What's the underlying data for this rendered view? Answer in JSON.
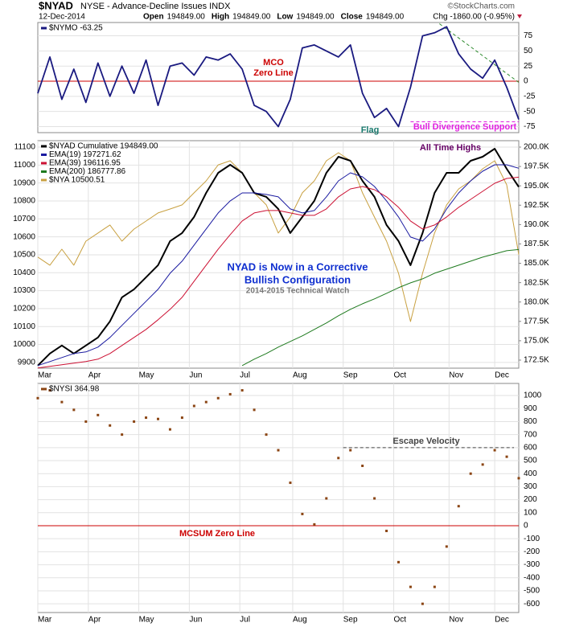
{
  "header": {
    "symbol": "$NYAD",
    "description": "NYSE - Advance-Decline Issues INDX",
    "date": "12-Dec-2014",
    "quote": [
      {
        "label": "Open",
        "value": "194849.00"
      },
      {
        "label": "High",
        "value": "194849.00"
      },
      {
        "label": "Low",
        "value": "194849.00"
      },
      {
        "label": "Close",
        "value": "194849.00"
      }
    ],
    "change": "Chg -1860.00 (-0.95%)",
    "source": "©StockCharts.com"
  },
  "chart_data": [
    {
      "type": "line",
      "y_axis_side": "right",
      "grid": true,
      "x": [
        0,
        5,
        10,
        15,
        20,
        25,
        30,
        35,
        40,
        45,
        50,
        55,
        60,
        65,
        70,
        75,
        80,
        85,
        90,
        95,
        100,
        105,
        110,
        115,
        120,
        125,
        130,
        135,
        140,
        145,
        150,
        155,
        160,
        165,
        170,
        175,
        180,
        185,
        190,
        195,
        200
      ],
      "xlim": [
        0,
        200
      ],
      "ylim": [
        -85,
        97
      ],
      "yticks": [
        -75,
        -50,
        -25,
        0,
        25,
        50,
        75
      ],
      "series": [
        {
          "name": "$NYMO -63.25",
          "color": "#1a1a80",
          "values": [
            -20,
            40,
            -30,
            20,
            -35,
            30,
            -25,
            25,
            -20,
            35,
            -40,
            25,
            30,
            10,
            40,
            35,
            45,
            20,
            -40,
            -50,
            -75,
            -30,
            55,
            60,
            50,
            40,
            60,
            -20,
            -60,
            -45,
            -75,
            -10,
            75,
            80,
            90,
            45,
            20,
            5,
            35,
            -10,
            -63.25
          ]
        }
      ],
      "hlines": [
        {
          "value": 0,
          "color": "#cc0000"
        }
      ],
      "trendlines": [
        {
          "x": [
            167,
            200
          ],
          "y": [
            95,
            -2
          ],
          "color": "#2e8b2e"
        },
        {
          "x": [
            155,
            200
          ],
          "y": [
            -67,
            -67
          ],
          "color": "#e020e0"
        }
      ],
      "annotations": [
        {
          "lines": [
            "MCO",
            "Zero Line"
          ],
          "color": "#cc0000"
        },
        {
          "lines": [
            "Flag"
          ],
          "color": "#1a7a6e"
        },
        {
          "lines": [
            "Bull Divergence Support"
          ],
          "color": "#e020e0"
        }
      ]
    },
    {
      "type": "line",
      "grid": true,
      "x": [
        0,
        5,
        10,
        15,
        20,
        25,
        30,
        35,
        40,
        45,
        50,
        55,
        60,
        65,
        70,
        75,
        80,
        85,
        90,
        95,
        100,
        105,
        110,
        115,
        120,
        125,
        130,
        135,
        140,
        145,
        150,
        155,
        160,
        165,
        170,
        175,
        180,
        185,
        190,
        195,
        200
      ],
      "xlim": [
        0,
        200
      ],
      "xticks": [
        {
          "value": 0,
          "label": "Mar"
        },
        {
          "value": 21,
          "label": "Apr"
        },
        {
          "value": 42,
          "label": "May"
        },
        {
          "value": 63,
          "label": "Jun"
        },
        {
          "value": 84,
          "label": "Jul"
        },
        {
          "value": 106,
          "label": "Aug"
        },
        {
          "value": 127,
          "label": "Sep"
        },
        {
          "value": 148,
          "label": "Oct"
        },
        {
          "value": 171,
          "label": "Nov"
        },
        {
          "value": 190,
          "label": "Dec"
        }
      ],
      "ylim": [
        9868,
        11136
      ],
      "yticks": [
        9900,
        10000,
        10100,
        10200,
        10300,
        10400,
        10500,
        10600,
        10700,
        10800,
        10900,
        11000,
        11100
      ],
      "y2lim": [
        171460,
        200830
      ],
      "y2ticks": [
        {
          "value": 172500,
          "label": "172.5K"
        },
        {
          "value": 175000,
          "label": "175.0K"
        },
        {
          "value": 177500,
          "label": "177.5K"
        },
        {
          "value": 180000,
          "label": "180.0K"
        },
        {
          "value": 182500,
          "label": "182.5K"
        },
        {
          "value": 185000,
          "label": "185.0K"
        },
        {
          "value": 187500,
          "label": "187.5K"
        },
        {
          "value": 190000,
          "label": "190.0K"
        },
        {
          "value": 192500,
          "label": "192.5K"
        },
        {
          "value": 195000,
          "label": "195.0K"
        },
        {
          "value": 197500,
          "label": "197.5K"
        },
        {
          "value": 200000,
          "label": "200.0K"
        }
      ],
      "series": [
        {
          "name": "$NYAD Cumulative 194849.00",
          "color": "#000000",
          "axis": "y2",
          "values": [
            171794,
            173349,
            174386,
            173349,
            174386,
            175423,
            177497,
            180608,
            181645,
            183201,
            184756,
            187867,
            188904,
            190978,
            194089,
            196682,
            197719,
            196682,
            194089,
            193571,
            192015,
            188904,
            190978,
            193052,
            196682,
            198756,
            198237,
            195645,
            193571,
            189941,
            187867,
            184756,
            188904,
            194089,
            196682,
            196682,
            198237,
            198756,
            199793,
            197200,
            194849
          ]
        },
        {
          "name": "EMA(19) 197271.62",
          "color": "#1a1aa0",
          "axis": "y2",
          "values": [
            171794,
            172312,
            172831,
            173349,
            173556,
            174179,
            175423,
            176979,
            178534,
            180090,
            181645,
            183719,
            185275,
            187349,
            189423,
            191497,
            193052,
            194089,
            194089,
            193882,
            193571,
            192015,
            191497,
            191808,
            193571,
            195645,
            196682,
            196163,
            194919,
            193052,
            190978,
            188386,
            187867,
            189423,
            192015,
            194089,
            195645,
            196889,
            197719,
            197719,
            197271.62
          ]
        },
        {
          "name": "EMA(39) 196116.95",
          "color": "#cc1133",
          "axis": "y2",
          "values": [
            171482,
            171690,
            171897,
            172105,
            172312,
            172623,
            173349,
            174386,
            175423,
            176460,
            177704,
            179053,
            180608,
            182682,
            184756,
            186830,
            188697,
            190460,
            191497,
            191808,
            191808,
            191497,
            191185,
            191185,
            192015,
            193571,
            194608,
            194919,
            194504,
            193571,
            192222,
            190460,
            189423,
            189941,
            190978,
            192222,
            193259,
            194296,
            195333,
            195956,
            196116.95
          ]
        },
        {
          "name": "EMA(200) 186777.86",
          "color": "#1e7a1e",
          "axis": "y2",
          "values": [
            null,
            null,
            null,
            null,
            null,
            null,
            null,
            null,
            null,
            null,
            null,
            null,
            null,
            null,
            null,
            null,
            null,
            171794,
            172623,
            173349,
            174179,
            174905,
            175630,
            176460,
            177290,
            178223,
            179053,
            179778,
            180401,
            181127,
            181852,
            182475,
            182993,
            183719,
            184238,
            184756,
            185275,
            185793,
            186208,
            186623,
            186777.86
          ]
        },
        {
          "name": "$NYA 10500.51",
          "color": "#c8a040",
          "values": [
            10487,
            10442,
            10531,
            10442,
            10576,
            10621,
            10666,
            10576,
            10643,
            10688,
            10733,
            10755,
            10778,
            10845,
            10912,
            11001,
            11024,
            10957,
            10845,
            10778,
            10621,
            10710,
            10845,
            10912,
            11024,
            11069,
            11024,
            10845,
            10710,
            10576,
            10397,
            10128,
            10397,
            10621,
            10778,
            10867,
            10912,
            10979,
            11024,
            10890,
            10500.51
          ]
        }
      ],
      "annotations": [
        {
          "lines": [
            "All Time Highs"
          ],
          "color": "#660066"
        },
        {
          "lines": [
            "NYAD is Now in a Corrective",
            "Bullish Configuration"
          ],
          "color": "#1030d0"
        },
        {
          "lines": [
            "2014-2015 Technical Watch"
          ],
          "color": "#777777"
        }
      ]
    },
    {
      "type": "scatter",
      "y_axis_side": "right",
      "grid": true,
      "x": [
        0,
        5,
        10,
        15,
        20,
        25,
        30,
        35,
        40,
        45,
        50,
        55,
        60,
        65,
        70,
        75,
        80,
        85,
        90,
        95,
        100,
        105,
        110,
        115,
        120,
        125,
        130,
        135,
        140,
        145,
        150,
        155,
        160,
        165,
        170,
        175,
        180,
        185,
        190,
        195,
        200
      ],
      "xlim": [
        0,
        200
      ],
      "xticks": [
        {
          "value": 0,
          "label": "Mar"
        },
        {
          "value": 21,
          "label": "Apr"
        },
        {
          "value": 42,
          "label": "May"
        },
        {
          "value": 63,
          "label": "Jun"
        },
        {
          "value": 84,
          "label": "Jul"
        },
        {
          "value": 106,
          "label": "Aug"
        },
        {
          "value": 127,
          "label": "Sep"
        },
        {
          "value": 148,
          "label": "Oct"
        },
        {
          "value": 171,
          "label": "Nov"
        },
        {
          "value": 190,
          "label": "Dec"
        }
      ],
      "ylim": [
        -667,
        1093
      ],
      "yticks": [
        -600,
        -500,
        -400,
        -300,
        -200,
        -100,
        0,
        100,
        200,
        300,
        400,
        500,
        600,
        700,
        800,
        900,
        1000
      ],
      "series": [
        {
          "name": "$NYSI 364.98",
          "color": "#8b4513",
          "values": [
            980,
            1040,
            950,
            890,
            800,
            850,
            770,
            700,
            800,
            830,
            820,
            740,
            830,
            920,
            950,
            980,
            1010,
            1040,
            890,
            700,
            580,
            330,
            90,
            10,
            210,
            520,
            580,
            460,
            210,
            -40,
            -280,
            -470,
            -600,
            -470,
            -160,
            150,
            400,
            470,
            580,
            530,
            364.98
          ]
        }
      ],
      "hlines": [
        {
          "value": 0,
          "color": "#cc0000"
        }
      ],
      "trendlines": [
        {
          "x": [
            127,
            198
          ],
          "y": [
            600,
            600
          ],
          "color": "#444444"
        }
      ],
      "annotations": [
        {
          "lines": [
            "Escape Velocity"
          ],
          "color": "#444444"
        },
        {
          "lines": [
            "MCSUM Zero Line"
          ],
          "color": "#cc0000"
        }
      ]
    }
  ]
}
